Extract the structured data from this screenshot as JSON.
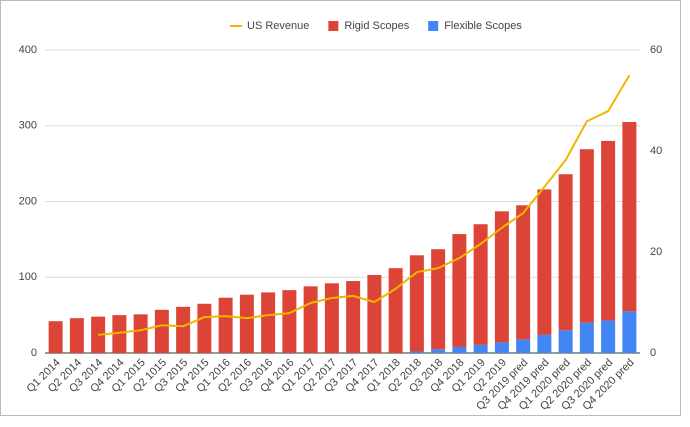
{
  "chart_data": {
    "type": "bar",
    "categories": [
      "Q1 2014",
      "Q2 2014",
      "Q3 2014",
      "Q4 2014",
      "Q1 2015",
      "Q2 1015",
      "Q3 2015",
      "Q4 2015",
      "Q1 2016",
      "Q2 2016",
      "Q3 2016",
      "Q4 2016",
      "Q1 2017",
      "Q2 2017",
      "Q3 2017",
      "Q4 2017",
      "Q1 2018",
      "Q2 2018",
      "Q3 2018",
      "Q4 2018",
      "Q1 2019",
      "Q2 2019",
      "Q3 2019 pred",
      "Q4 2019 pred",
      "Q1 2020 pred",
      "Q2 2020 pred",
      "Q3 2020 pred",
      "Q4 2020 pred"
    ],
    "series": [
      {
        "name": "US Revenue",
        "type": "line",
        "axis": "y2",
        "color": "#f4b400",
        "values": [
          null,
          null,
          3.6,
          4,
          4.5,
          5.5,
          5.3,
          7.1,
          7.3,
          6.9,
          7.5,
          7.9,
          9.9,
          10.9,
          11.3,
          10.1,
          12.7,
          16,
          16.8,
          18.8,
          21.6,
          24.8,
          27.7,
          32.9,
          38.2,
          45.9,
          47.9,
          55
        ]
      },
      {
        "name": "Rigid Scopes",
        "type": "bar",
        "color": "#db4437",
        "values": [
          42,
          46,
          48,
          50,
          51,
          57,
          61,
          65,
          73,
          77,
          80,
          83,
          88,
          92,
          95,
          103,
          112,
          127,
          132,
          149,
          159,
          173,
          177,
          192,
          206,
          229,
          237,
          250
        ]
      },
      {
        "name": "Flexible Scopes",
        "type": "bar",
        "color": "#4285f4",
        "values": [
          0,
          0,
          0,
          0,
          0,
          0,
          0,
          0,
          0,
          0,
          0,
          0,
          0,
          0,
          0,
          0,
          0,
          2,
          5,
          8,
          11,
          14,
          18,
          24,
          30,
          40,
          43,
          55
        ]
      }
    ],
    "ylim": [
      0,
      400
    ],
    "yticks": [
      0,
      100,
      200,
      300,
      400
    ],
    "y2lim": [
      0,
      60
    ],
    "y2ticks": [
      0,
      20,
      40,
      60
    ],
    "grid": true,
    "legend": "top"
  }
}
